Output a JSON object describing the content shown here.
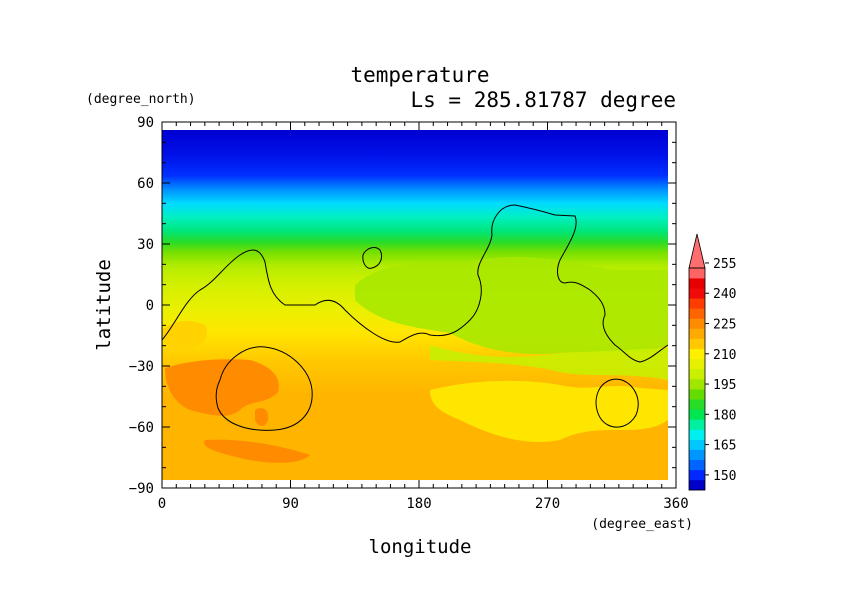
{
  "chart_data": {
    "type": "heatmap",
    "title": "temperature",
    "subtitle": "Ls = 285.81787 degree",
    "xlabel": "longitude",
    "ylabel": "latitude",
    "x_units": "(degree_east)",
    "y_units": "(degree_north)",
    "xlim": [
      0,
      360
    ],
    "ylim": [
      -90,
      90
    ],
    "x_ticks": [
      "0",
      "90",
      "180",
      "270",
      "360"
    ],
    "y_ticks": [
      "90",
      "60",
      "30",
      "0",
      "−30",
      "−60",
      "−90"
    ],
    "colorbar": {
      "levels": [
        145,
        150,
        155,
        160,
        165,
        170,
        175,
        180,
        185,
        190,
        195,
        200,
        205,
        210,
        215,
        220,
        225,
        230,
        235,
        240,
        245,
        250,
        255,
        260
      ],
      "tick_labels": [
        "150",
        "165",
        "180",
        "195",
        "210",
        "225",
        "240",
        "255"
      ],
      "extend": "max",
      "colors": [
        "#0000c8",
        "#0028ff",
        "#0064ff",
        "#0096ff",
        "#00c8ff",
        "#00f0f0",
        "#00f0a0",
        "#00e650",
        "#28dc28",
        "#64dc00",
        "#a0e600",
        "#c8f000",
        "#e6f000",
        "#fff000",
        "#ffc800",
        "#ffaa00",
        "#ff8c00",
        "#ff6400",
        "#ff3c00",
        "#f00a0a",
        "#e60000",
        "#ff6464"
      ]
    },
    "grid": false,
    "temperature_by_latitude": [
      {
        "lat": 85,
        "value": 146
      },
      {
        "lat": 75,
        "value": 147
      },
      {
        "lat": 65,
        "value": 152
      },
      {
        "lat": 55,
        "value": 172
      },
      {
        "lat": 45,
        "value": 188
      },
      {
        "lat": 35,
        "value": 200
      },
      {
        "lat": 25,
        "value": 210
      },
      {
        "lat": 15,
        "value": 215
      },
      {
        "lat": 5,
        "value": 218
      },
      {
        "lat": -5,
        "value": 222
      },
      {
        "lat": -15,
        "value": 226
      },
      {
        "lat": -25,
        "value": 228
      },
      {
        "lat": -35,
        "value": 232
      },
      {
        "lat": -45,
        "value": 232
      },
      {
        "lat": -55,
        "value": 231
      },
      {
        "lat": -65,
        "value": 229
      },
      {
        "lat": -75,
        "value": 229
      },
      {
        "lat": -85,
        "value": 229
      }
    ]
  }
}
